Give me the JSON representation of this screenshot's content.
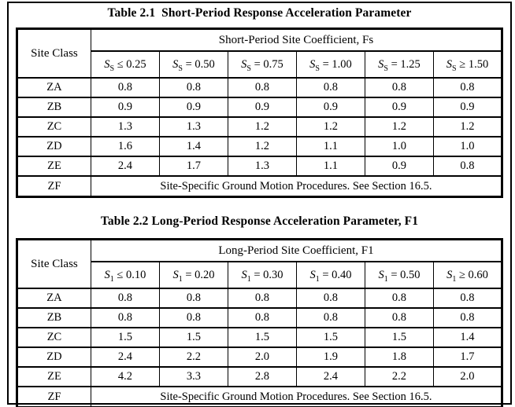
{
  "tables": [
    {
      "title": "Table 2.1  Short-Period Response Acceleration Parameter",
      "corner_label": "Site Class",
      "group_header": "Short-Period Site Coefficient, Fs",
      "columns": [
        {
          "symbol": "S",
          "subscript": "S",
          "relation": "≤",
          "value": "0.25"
        },
        {
          "symbol": "S",
          "subscript": "S",
          "relation": "=",
          "value": "0.50"
        },
        {
          "symbol": "S",
          "subscript": "S",
          "relation": "=",
          "value": "0.75"
        },
        {
          "symbol": "S",
          "subscript": "S",
          "relation": "=",
          "value": "1.00"
        },
        {
          "symbol": "S",
          "subscript": "S",
          "relation": "=",
          "value": "1.25"
        },
        {
          "symbol": "S",
          "subscript": "S",
          "relation": "≥",
          "value": "1.50"
        }
      ],
      "rows": [
        {
          "site_class": "ZA",
          "values": [
            "0.8",
            "0.8",
            "0.8",
            "0.8",
            "0.8",
            "0.8"
          ]
        },
        {
          "site_class": "ZB",
          "values": [
            "0.9",
            "0.9",
            "0.9",
            "0.9",
            "0.9",
            "0.9"
          ]
        },
        {
          "site_class": "ZC",
          "values": [
            "1.3",
            "1.3",
            "1.2",
            "1.2",
            "1.2",
            "1.2"
          ]
        },
        {
          "site_class": "ZD",
          "values": [
            "1.6",
            "1.4",
            "1.2",
            "1.1",
            "1.0",
            "1.0"
          ]
        },
        {
          "site_class": "ZE",
          "values": [
            "2.4",
            "1.7",
            "1.3",
            "1.1",
            "0.9",
            "0.8"
          ]
        }
      ],
      "footer_row": {
        "site_class": "ZF",
        "note": "Site-Specific Ground Motion Procedures. See Section 16.5."
      }
    },
    {
      "title": "Table 2.2 Long-Period Response Acceleration Parameter, F1",
      "corner_label": "Site Class",
      "group_header": "Long-Period Site Coefficient, F1",
      "columns": [
        {
          "symbol": "S",
          "subscript": "1",
          "relation": "≤",
          "value": "0.10"
        },
        {
          "symbol": "S",
          "subscript": "1",
          "relation": "=",
          "value": "0.20"
        },
        {
          "symbol": "S",
          "subscript": "1",
          "relation": "=",
          "value": "0.30"
        },
        {
          "symbol": "S",
          "subscript": "1",
          "relation": "=",
          "value": "0.40"
        },
        {
          "symbol": "S",
          "subscript": "1",
          "relation": "=",
          "value": "0.50"
        },
        {
          "symbol": "S",
          "subscript": "1",
          "relation": "≥",
          "value": "0.60"
        }
      ],
      "rows": [
        {
          "site_class": "ZA",
          "values": [
            "0.8",
            "0.8",
            "0.8",
            "0.8",
            "0.8",
            "0.8"
          ]
        },
        {
          "site_class": "ZB",
          "values": [
            "0.8",
            "0.8",
            "0.8",
            "0.8",
            "0.8",
            "0.8"
          ]
        },
        {
          "site_class": "ZC",
          "values": [
            "1.5",
            "1.5",
            "1.5",
            "1.5",
            "1.5",
            "1.4"
          ]
        },
        {
          "site_class": "ZD",
          "values": [
            "2.4",
            "2.2",
            "2.0",
            "1.9",
            "1.8",
            "1.7"
          ]
        },
        {
          "site_class": "ZE",
          "values": [
            "4.2",
            "3.3",
            "2.8",
            "2.4",
            "2.2",
            "2.0"
          ]
        }
      ],
      "footer_row": {
        "site_class": "ZF",
        "note": "Site-Specific Ground Motion Procedures. See Section 16.5."
      }
    }
  ],
  "colors": {
    "text": "#000000",
    "background": "#ffffff",
    "border": "#000000"
  }
}
